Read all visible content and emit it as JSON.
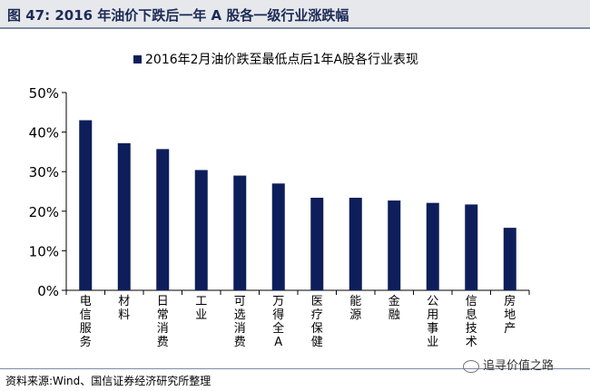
{
  "header": {
    "title": "图 47:  2016 年油价下跌后一年 A 股各一级行业涨跌幅"
  },
  "footer": {
    "source": "资料来源:Wind、国信证券经济研究所整理",
    "watermark": "追寻价值之路",
    "watermark_icon": "wechat-icon"
  },
  "chart_data": {
    "type": "bar",
    "title": "",
    "legend": {
      "label": "2016年2月油价跌至最低点后1年A股各行业表现",
      "placement": "top"
    },
    "categories": [
      "电信服务",
      "材料",
      "日常消费",
      "工业",
      "可选消费",
      "万得全A",
      "医疗保健",
      "能源",
      "金融",
      "公用事业",
      "信息技术",
      "房地产"
    ],
    "series": [
      {
        "name": "2016年2月油价跌至最低点后1年A股各行业表现",
        "values": [
          0.43,
          0.372,
          0.357,
          0.304,
          0.29,
          0.27,
          0.234,
          0.234,
          0.227,
          0.221,
          0.217,
          0.158
        ],
        "color": "#0d1e5a"
      }
    ],
    "ylim": [
      0,
      0.5
    ],
    "yticks": [
      0,
      0.1,
      0.2,
      0.3,
      0.4,
      0.5
    ],
    "ytick_labels": [
      "0%",
      "10%",
      "20%",
      "30%",
      "40%",
      "50%"
    ],
    "xlabel": "",
    "ylabel": "",
    "grid": false
  }
}
